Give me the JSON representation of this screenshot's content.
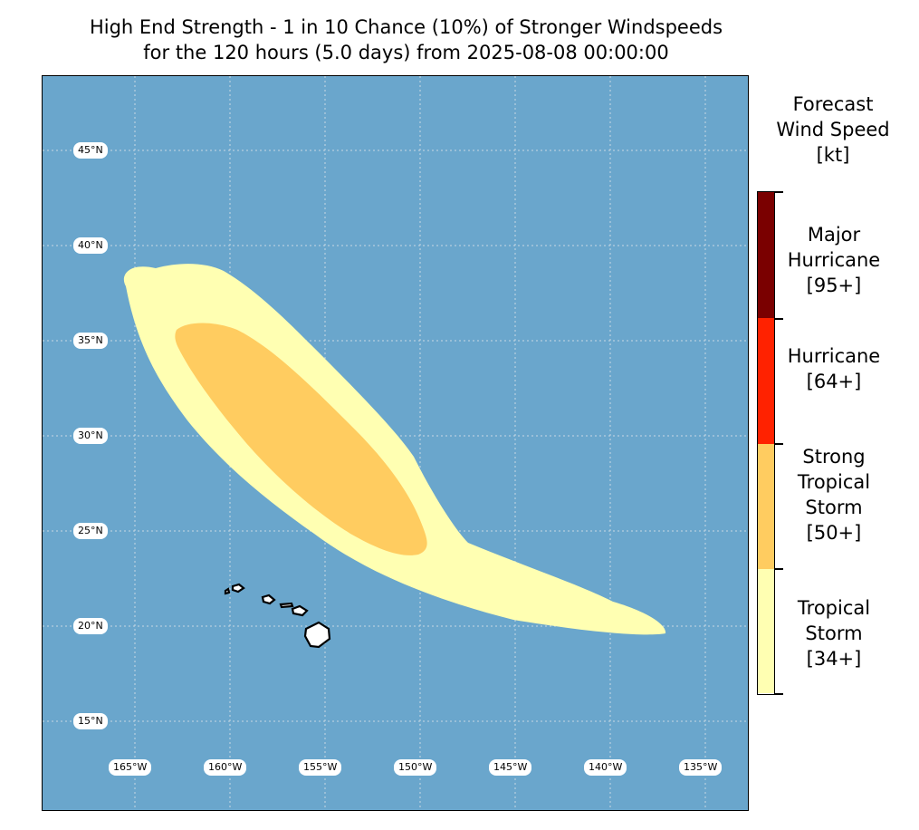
{
  "title": {
    "line1": "High End Strength - 1 in 10 Chance (10%) of Stronger Windspeeds",
    "line2": "for the 120 hours (5.0 days) from 2025-08-08 00:00:00"
  },
  "map": {
    "ocean_color": "#6aa6cc",
    "lat_labels": [
      "45°N",
      "40°N",
      "35°N",
      "30°N",
      "25°N",
      "20°N",
      "15°N"
    ],
    "lon_labels": [
      "165°W",
      "160°W",
      "155°W",
      "150°W",
      "145°W",
      "140°W",
      "135°W"
    ],
    "land": "Hawaiian Islands"
  },
  "legend": {
    "title_line1": "Forecast",
    "title_line2": "Wind Speed",
    "title_line3": "[kt]",
    "categories": [
      {
        "line1": "Major",
        "line2": "Hurricane",
        "line3": "[95+]",
        "color": "#7a0000"
      },
      {
        "line1": "Hurricane",
        "line2": "[64+]",
        "color": "#ff2200"
      },
      {
        "line1": "Strong",
        "line2": "Tropical",
        "line3": "Storm",
        "line4": "[50+]",
        "color": "#ffcc60"
      },
      {
        "line1": "Tropical",
        "line2": "Storm",
        "line3": "[34+]",
        "color": "#ffffb2"
      }
    ]
  }
}
